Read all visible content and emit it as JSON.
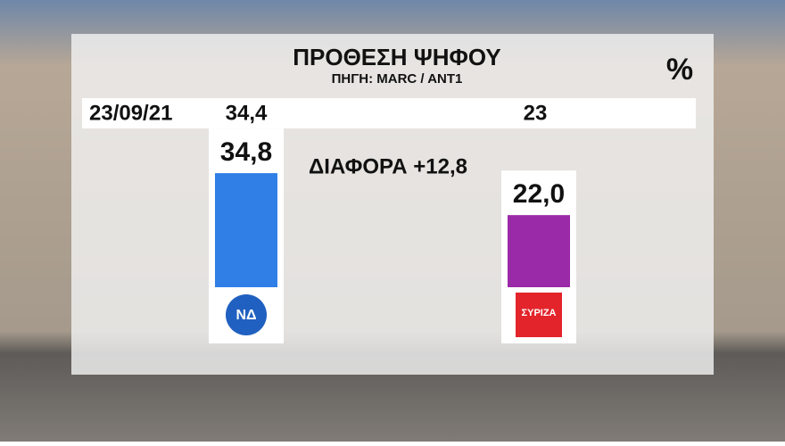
{
  "chart_data": {
    "type": "bar",
    "title": "ΠΡΟΘΕΣΗ ΨΗΦΟΥ",
    "subtitle": "ΠΗΓΗ: MARC / ANT1",
    "unit": "%",
    "categories": [
      "ΝΔ",
      "ΣΥΡΙΖΑ"
    ],
    "values": [
      34.8,
      22.0
    ],
    "value_labels": [
      "34,8",
      "22,0"
    ],
    "colors": [
      "#2f7fe6",
      "#9a2aa8"
    ],
    "ylim": [
      0,
      40
    ],
    "annotation": "ΔΙΑΦΟΡΑ +12,8",
    "previous": {
      "date": "23/09/21",
      "values": [
        34.4,
        23
      ],
      "value_labels": [
        "34,4",
        "23"
      ]
    }
  }
}
